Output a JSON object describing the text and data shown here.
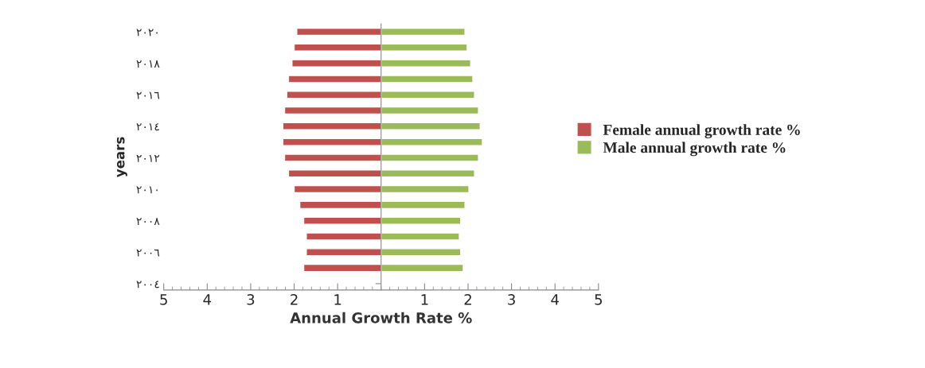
{
  "chart_data": {
    "type": "bar",
    "orientation": "horizontal",
    "ylabel": "years",
    "xlabel": "Annual Growth Rate %",
    "categories": [
      "٢٠٢٠",
      null,
      "٢٠١٨",
      null,
      "٢٠١٦",
      null,
      "٢٠١٤",
      null,
      "٢٠١٢",
      null,
      "٢٠١٠",
      null,
      "٢٠٠٨",
      null,
      "٢٠٠٦",
      null,
      "٢٠٠٤"
    ],
    "series": [
      {
        "name": "Female annual growth rate %",
        "color": "#c0504d",
        "values": [
          -1.94,
          -2.0,
          -2.05,
          -2.13,
          -2.17,
          -2.22,
          -2.26,
          -2.26,
          -2.22,
          -2.13,
          -2.0,
          -1.87,
          -1.78,
          -1.72,
          -1.72,
          -1.78,
          null
        ]
      },
      {
        "name": "Male annual growth rate %",
        "color": "#9bbb59",
        "values": [
          1.93,
          1.98,
          2.06,
          2.11,
          2.15,
          2.24,
          2.28,
          2.33,
          2.24,
          2.15,
          2.02,
          1.93,
          1.83,
          1.8,
          1.83,
          1.89,
          null
        ]
      }
    ],
    "xlim": [
      -5,
      5
    ],
    "xticks": [
      {
        "value": -5,
        "label": "5"
      },
      {
        "value": -4,
        "label": "4"
      },
      {
        "value": -3,
        "label": "3"
      },
      {
        "value": -2,
        "label": "2"
      },
      {
        "value": -1,
        "label": "1"
      },
      1,
      2,
      3,
      4,
      5
    ],
    "stacked": true,
    "grid": false,
    "legend": "right"
  }
}
